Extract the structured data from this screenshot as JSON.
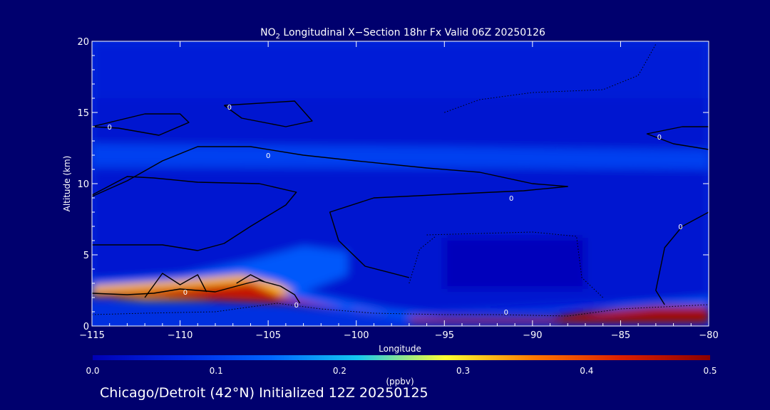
{
  "chart_data": {
    "type": "heatmap",
    "title_main": "NO",
    "title_sub": "2",
    "title_rest": " Longitudinal X−Section 18hr  Fx Valid 06Z 20250126",
    "xlabel": "Longitude",
    "ylabel": "Altitude (km)",
    "xlim": [
      -115,
      -80
    ],
    "ylim": [
      0,
      20
    ],
    "xticks": [
      -115,
      -110,
      -105,
      -100,
      -95,
      -90,
      -85,
      -80
    ],
    "xtick_labels": [
      "−115",
      "−110",
      "−105",
      "−100",
      "−95",
      "−90",
      "−85",
      "−80"
    ],
    "yticks": [
      0,
      5,
      10,
      15,
      20
    ],
    "ytick_labels": [
      "0",
      "5",
      "10",
      "15",
      "20"
    ],
    "colorbar": {
      "label": "(ppbv)",
      "min": 0.0,
      "max": 0.5,
      "ticks": [
        0.0,
        0.1,
        0.2,
        0.3,
        0.4,
        0.5
      ],
      "tick_labels": [
        "0.0",
        "0.1",
        "0.2",
        "0.3",
        "0.4",
        "0.5"
      ],
      "stops": [
        "#0000b4",
        "#0028e6",
        "#0064ff",
        "#14c8f0",
        "#ffff32",
        "#ff7800",
        "#dc1e00",
        "#8c0000"
      ]
    },
    "regions": [
      {
        "name": "upper-band",
        "value": 0.05,
        "points": [
          [
            -115,
            20
          ],
          [
            -80,
            20
          ],
          [
            -80,
            16
          ],
          [
            -115,
            16
          ]
        ]
      },
      {
        "name": "mid-band",
        "value": 0.04,
        "points": [
          [
            -115,
            16
          ],
          [
            -80,
            16
          ],
          [
            -80,
            12.5
          ],
          [
            -115,
            12.5
          ]
        ]
      },
      {
        "name": "bright-strip-12km",
        "value": 0.1,
        "points": [
          [
            -115,
            12.8
          ],
          [
            -95,
            12.6
          ],
          [
            -80,
            12.3
          ],
          [
            -80,
            11
          ],
          [
            -95,
            11.2
          ],
          [
            -115,
            11.3
          ]
        ]
      },
      {
        "name": "lower-troposphere",
        "value": 0.04,
        "points": [
          [
            -115,
            11
          ],
          [
            -80,
            11
          ],
          [
            -80,
            2
          ],
          [
            -96,
            1
          ],
          [
            -115,
            2.5
          ]
        ]
      },
      {
        "name": "dark-box",
        "value": 0.01,
        "points": [
          [
            -95,
            6.2
          ],
          [
            -87,
            6.2
          ],
          [
            -87,
            2.6
          ],
          [
            -95,
            2.6
          ]
        ]
      },
      {
        "name": "plume-halo",
        "value": 0.13,
        "points": [
          [
            -115,
            3.2
          ],
          [
            -110,
            3.6
          ],
          [
            -106,
            4.6
          ],
          [
            -103,
            5.6
          ],
          [
            -100.5,
            5.2
          ],
          [
            -100.5,
            3.6
          ],
          [
            -103,
            2.4
          ],
          [
            -98,
            1.1
          ],
          [
            -95,
            0.7
          ],
          [
            -88,
            0.7
          ],
          [
            -85,
            1.5
          ],
          [
            -80,
            2.0
          ],
          [
            -80,
            0.3
          ],
          [
            -96,
            0.3
          ],
          [
            -105,
            1.8
          ],
          [
            -115,
            2.0
          ]
        ]
      },
      {
        "name": "plume-core",
        "value": 0.32,
        "points": [
          [
            -115,
            2.8
          ],
          [
            -110,
            3.2
          ],
          [
            -106.5,
            3.6
          ],
          [
            -104.5,
            3.0
          ],
          [
            -103.5,
            2.4
          ],
          [
            -106,
            1.8
          ],
          [
            -112,
            1.8
          ],
          [
            -115,
            2.1
          ]
        ]
      },
      {
        "name": "plume-max",
        "value": 0.45,
        "points": [
          [
            -115,
            2.3
          ],
          [
            -110,
            2.7
          ],
          [
            -106,
            3.1
          ],
          [
            -104,
            2.0
          ],
          [
            -100,
            1.0
          ],
          [
            -98,
            0.8
          ],
          [
            -104,
            1.6
          ],
          [
            -112,
            2.0
          ],
          [
            -115,
            2.0
          ]
        ]
      },
      {
        "name": "surface-layer-east",
        "value": 0.48,
        "points": [
          [
            -97,
            0.6
          ],
          [
            -89,
            0.6
          ],
          [
            -87,
            1.0
          ],
          [
            -83,
            1.4
          ],
          [
            -80,
            1.4
          ],
          [
            -80,
            0.2
          ],
          [
            -97,
            0.2
          ]
        ]
      }
    ],
    "contours": [
      {
        "label": "0",
        "style": "solid",
        "points": [
          [
            -115,
            14.0
          ],
          [
            -112,
            14.9
          ],
          [
            -110,
            14.9
          ],
          [
            -109.5,
            14.3
          ],
          [
            -111.2,
            13.4
          ],
          [
            -113.5,
            13.9
          ],
          [
            -115,
            14.0
          ]
        ]
      },
      {
        "label": "0",
        "style": "solid",
        "points": [
          [
            -107.5,
            15.5
          ],
          [
            -103.5,
            15.8
          ],
          [
            -102.5,
            14.4
          ],
          [
            -104,
            14.0
          ],
          [
            -106.5,
            14.6
          ],
          [
            -107.5,
            15.5
          ]
        ]
      },
      {
        "label": "0",
        "style": "solid",
        "points": [
          [
            -115,
            9.1
          ],
          [
            -113,
            10.2
          ],
          [
            -111,
            11.6
          ],
          [
            -109,
            12.6
          ],
          [
            -106,
            12.6
          ],
          [
            -103,
            12.0
          ],
          [
            -100,
            11.6
          ],
          [
            -96,
            11.1
          ],
          [
            -93,
            10.8
          ],
          [
            -90,
            10.0
          ],
          [
            -88,
            9.8
          ],
          [
            -90.5,
            9.5
          ],
          [
            -94,
            9.3
          ],
          [
            -99,
            9.0
          ],
          [
            -101.5,
            8.0
          ],
          [
            -101,
            6.0
          ],
          [
            -99.5,
            4.2
          ],
          [
            -97,
            3.4
          ]
        ]
      },
      {
        "label": "0",
        "style": "solid",
        "points": [
          [
            -115,
            5.7
          ],
          [
            -111,
            5.7
          ],
          [
            -109,
            5.3
          ],
          [
            -107.5,
            5.8
          ],
          [
            -106,
            7.0
          ],
          [
            -104,
            8.5
          ],
          [
            -103.4,
            9.4
          ],
          [
            -105.5,
            10.0
          ],
          [
            -109,
            10.1
          ],
          [
            -111.5,
            10.4
          ],
          [
            -113,
            10.5
          ],
          [
            -115,
            9.2
          ]
        ]
      },
      {
        "label": "0",
        "style": "solid",
        "points": [
          [
            -80,
            8.0
          ],
          [
            -81.5,
            7.0
          ],
          [
            -82.5,
            5.5
          ],
          [
            -83,
            2.5
          ],
          [
            -82.5,
            1.5
          ]
        ]
      },
      {
        "label": "0",
        "style": "solid",
        "points": [
          [
            -80,
            12.4
          ],
          [
            -82,
            12.8
          ],
          [
            -83.5,
            13.5
          ],
          [
            -81.5,
            14.0
          ],
          [
            -80,
            14.0
          ]
        ]
      },
      {
        "label": "0",
        "style": "solid",
        "points": [
          [
            -115,
            2.3
          ],
          [
            -113,
            2.2
          ],
          [
            -111.5,
            2.3
          ],
          [
            -110,
            2.6
          ],
          [
            -108,
            2.4
          ],
          [
            -106.2,
            3.0
          ],
          [
            -105.5,
            3.2
          ],
          [
            -104.3,
            2.8
          ],
          [
            -103.5,
            2.2
          ],
          [
            -103.2,
            1.6
          ]
        ]
      },
      {
        "label": "0",
        "style": "solid",
        "points": [
          [
            -112,
            2.0
          ],
          [
            -111,
            3.7
          ],
          [
            -110,
            2.9
          ],
          [
            -109,
            3.6
          ],
          [
            -108.5,
            2.4
          ]
        ]
      },
      {
        "label": "0",
        "style": "solid",
        "points": [
          [
            -106.8,
            3.0
          ],
          [
            -106,
            3.6
          ],
          [
            -105.2,
            3.1
          ]
        ]
      },
      {
        "label": "0",
        "style": "dotted",
        "points": [
          [
            -115,
            0.8
          ],
          [
            -112,
            0.9
          ],
          [
            -108,
            1.0
          ],
          [
            -104.5,
            1.6
          ],
          [
            -102,
            1.2
          ],
          [
            -99,
            0.9
          ],
          [
            -95,
            0.8
          ],
          [
            -92,
            0.8
          ],
          [
            -88,
            0.7
          ],
          [
            -85,
            1.2
          ],
          [
            -80,
            1.5
          ]
        ]
      },
      {
        "label": "0",
        "style": "dotted",
        "points": [
          [
            -96,
            6.4
          ],
          [
            -90,
            6.6
          ],
          [
            -87.5,
            6.3
          ],
          [
            -87.2,
            3.4
          ],
          [
            -86,
            2.0
          ]
        ]
      },
      {
        "label": "0",
        "style": "dotted",
        "points": [
          [
            -97,
            3.0
          ],
          [
            -96.4,
            5.4
          ],
          [
            -95.5,
            6.3
          ]
        ]
      },
      {
        "label": "0",
        "style": "dotted",
        "points": [
          [
            -95,
            15.0
          ],
          [
            -93,
            15.9
          ],
          [
            -90,
            16.4
          ],
          [
            -86,
            16.6
          ],
          [
            -84,
            17.6
          ],
          [
            -83,
            19.8
          ]
        ]
      }
    ],
    "contour_labels": [
      {
        "text": "0",
        "x": -107.2,
        "y": 15.4
      },
      {
        "text": "0",
        "x": -114.0,
        "y": 14.0
      },
      {
        "text": "0",
        "x": -105.0,
        "y": 12.0
      },
      {
        "text": "0",
        "x": -91.2,
        "y": 9.0
      },
      {
        "text": "0",
        "x": -82.8,
        "y": 13.3
      },
      {
        "text": "0",
        "x": -81.6,
        "y": 7.0
      },
      {
        "text": "0",
        "x": -109.7,
        "y": 2.4
      },
      {
        "text": "0",
        "x": -103.4,
        "y": 1.5
      },
      {
        "text": "0",
        "x": -91.5,
        "y": 1.0
      }
    ]
  },
  "footer": {
    "caption": "Chicago/Detroit (42°N) Initialized 12Z 20250125"
  }
}
